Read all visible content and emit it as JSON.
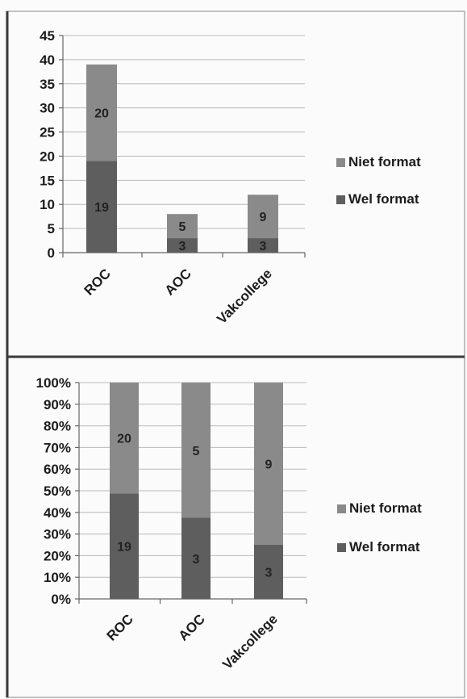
{
  "colors": {
    "niet_format": "#8a8a8a",
    "wel_format": "#5e5e5e"
  },
  "chart_data": [
    {
      "type": "bar",
      "stacked": true,
      "categories": [
        "ROC",
        "AOC",
        "Vakcollege"
      ],
      "series": [
        {
          "name": "Wel format",
          "values": [
            19,
            3,
            3
          ]
        },
        {
          "name": "Niet format",
          "values": [
            20,
            5,
            9
          ]
        }
      ],
      "ylim": [
        0,
        45
      ],
      "yticks": [
        "0",
        "5",
        "10",
        "15",
        "20",
        "25",
        "30",
        "35",
        "40",
        "45"
      ],
      "grid": true,
      "legend_position": "right",
      "legend": [
        "Niet format",
        "Wel format"
      ]
    },
    {
      "type": "bar",
      "stacked": true,
      "normalized": true,
      "categories": [
        "ROC",
        "AOC",
        "Vakcollege"
      ],
      "series": [
        {
          "name": "Wel format",
          "values": [
            19,
            3,
            3
          ]
        },
        {
          "name": "Niet format",
          "values": [
            20,
            5,
            9
          ]
        }
      ],
      "ylim": [
        0,
        100
      ],
      "yticks": [
        "0%",
        "10%",
        "20%",
        "30%",
        "40%",
        "50%",
        "60%",
        "70%",
        "80%",
        "90%",
        "100%"
      ],
      "grid": true,
      "legend_position": "right",
      "legend": [
        "Niet format",
        "Wel format"
      ]
    }
  ]
}
